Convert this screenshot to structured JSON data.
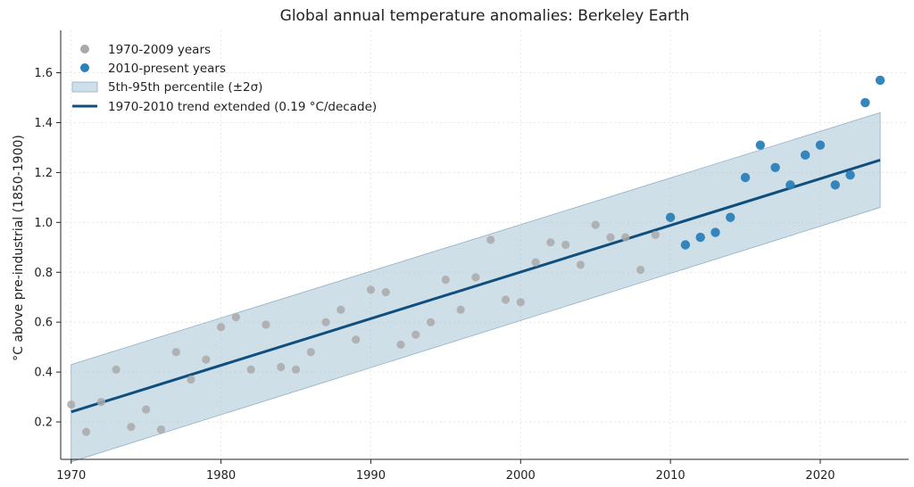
{
  "chart_data": {
    "type": "scatter",
    "title": "Global annual temperature anomalies: Berkeley Earth",
    "xlabel": "",
    "ylabel": "°C above pre-industrial (1850-1900)",
    "xlim": [
      1969.3,
      2025.9
    ],
    "ylim": [
      0.05,
      1.77
    ],
    "xticks": [
      1970,
      1980,
      1990,
      2000,
      2010,
      2020
    ],
    "yticks": [
      0.2,
      0.4,
      0.6,
      0.8,
      1.0,
      1.2,
      1.4,
      1.6
    ],
    "ytick_labels": [
      "0.2",
      "0.4",
      "0.6",
      "0.8",
      "1.0",
      "1.2",
      "1.4",
      "1.6"
    ],
    "grid": true,
    "legend_position": "top-left",
    "series": [
      {
        "name": "1970-2009 years",
        "kind": "scatter",
        "color": "#a9a9a9",
        "x": [
          1970,
          1971,
          1972,
          1973,
          1974,
          1975,
          1976,
          1977,
          1978,
          1979,
          1980,
          1981,
          1982,
          1983,
          1984,
          1985,
          1986,
          1987,
          1988,
          1989,
          1990,
          1991,
          1992,
          1993,
          1994,
          1995,
          1996,
          1997,
          1998,
          1999,
          2000,
          2001,
          2002,
          2003,
          2004,
          2005,
          2006,
          2007,
          2008,
          2009
        ],
        "y": [
          0.27,
          0.16,
          0.28,
          0.41,
          0.18,
          0.25,
          0.17,
          0.48,
          0.37,
          0.45,
          0.58,
          0.62,
          0.41,
          0.59,
          0.42,
          0.41,
          0.48,
          0.6,
          0.65,
          0.53,
          0.73,
          0.72,
          0.51,
          0.55,
          0.6,
          0.77,
          0.65,
          0.78,
          0.93,
          0.69,
          0.68,
          0.84,
          0.92,
          0.91,
          0.83,
          0.99,
          0.94,
          0.94,
          0.81,
          0.95
        ]
      },
      {
        "name": "2010-present years",
        "kind": "scatter",
        "color": "#2a80b9",
        "x": [
          2010,
          2011,
          2012,
          2013,
          2014,
          2015,
          2016,
          2017,
          2018,
          2019,
          2020,
          2021,
          2022,
          2023,
          2024
        ],
        "y": [
          1.02,
          0.91,
          0.94,
          0.96,
          1.02,
          1.18,
          1.31,
          1.22,
          1.15,
          1.27,
          1.31,
          1.15,
          1.19,
          1.48,
          1.57
        ]
      },
      {
        "name": "5th-95th percentile (±2σ)",
        "kind": "band",
        "color": "#a8c4d6",
        "x": [
          1970,
          2024
        ],
        "lower": [
          0.04,
          1.06
        ],
        "upper": [
          0.43,
          1.44
        ]
      },
      {
        "name": "1970-2010 trend extended (0.19 °C/decade)",
        "kind": "line",
        "color": "#0e4f7f",
        "x": [
          1970,
          2024
        ],
        "y": [
          0.24,
          1.25
        ]
      }
    ]
  }
}
